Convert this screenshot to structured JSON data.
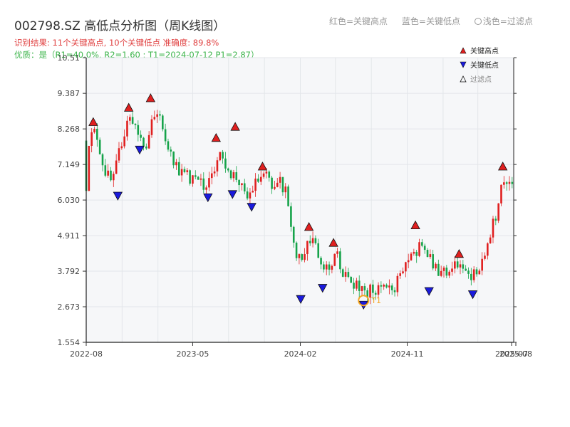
{
  "header": {
    "title": "002798.SZ 高低点分析图（周K线图）",
    "line1": "识别结果: 11个关键高点, 10个关键低点  准确度: 89.8%",
    "line2": "优质：是（R1=40.0%, R2=1.60 ; T1=2024-07-12 P1=2.87）"
  },
  "top_legend": {
    "red": "红色=关键高点",
    "blue": "蓝色=关键低点",
    "filtered": "浅色=过滤点"
  },
  "colors": {
    "up": "#e01f1f",
    "down": "#16a34a",
    "high_marker": "#e01f1f",
    "low_marker": "#1a1adc",
    "t1_ring": "#f5a623",
    "plot_bg": "#f6f7f9",
    "grid": "#e3e6ea"
  },
  "chart_data": {
    "type": "candlestick",
    "ylim": [
      1.554,
      10.51
    ],
    "yticks": [
      "1.554",
      "2.673",
      "3.792",
      "4.911",
      "6.030",
      "7.149",
      "8.268",
      "9.387",
      "10.51"
    ],
    "xlabels": [
      "2022-08",
      "2023-05",
      "2024-02",
      "2024-11",
      "2025-07",
      "2025-08"
    ],
    "x_range": [
      "2022-08-01",
      "2025-08-01"
    ],
    "legend": {
      "position": "top-right",
      "items": [
        {
          "label": "关键高点",
          "marker": "triangle-up",
          "color": "#e01f1f"
        },
        {
          "label": "关键低点",
          "marker": "triangle-down",
          "color": "#1a1adc"
        },
        {
          "label": "过滤点",
          "marker": "triangle-up-hollow",
          "color": "#666666"
        }
      ]
    },
    "t1_label": "T1",
    "t1_point": {
      "date": "2024-07-12",
      "price": 2.87
    },
    "anchors": [
      [
        "2022-08-05",
        7.9
      ],
      [
        "2022-08-26",
        8.2
      ],
      [
        "2022-09-16",
        7.0
      ],
      [
        "2022-10-07",
        6.5
      ],
      [
        "2022-10-28",
        7.7
      ],
      [
        "2022-11-18",
        8.7
      ],
      [
        "2022-12-09",
        8.3
      ],
      [
        "2022-12-30",
        7.8
      ],
      [
        "2023-01-27",
        8.9
      ],
      [
        "2023-02-17",
        8.0
      ],
      [
        "2023-03-10",
        7.4
      ],
      [
        "2023-03-31",
        6.9
      ],
      [
        "2023-04-21",
        6.75
      ],
      [
        "2023-05-12",
        6.6
      ],
      [
        "2023-06-02",
        6.45
      ],
      [
        "2023-06-23",
        6.9
      ],
      [
        "2023-07-14",
        7.5
      ],
      [
        "2023-08-04",
        6.9
      ],
      [
        "2023-08-25",
        6.7
      ],
      [
        "2023-09-15",
        6.0
      ],
      [
        "2023-10-06",
        6.5
      ],
      [
        "2023-10-27",
        6.8
      ],
      [
        "2023-11-17",
        6.5
      ],
      [
        "2023-12-08",
        6.6
      ],
      [
        "2023-12-29",
        6.2
      ],
      [
        "2024-01-19",
        4.2
      ],
      [
        "2024-02-09",
        4.3
      ],
      [
        "2024-03-01",
        4.9
      ],
      [
        "2024-03-22",
        4.3
      ],
      [
        "2024-04-12",
        3.8
      ],
      [
        "2024-05-03",
        4.35
      ],
      [
        "2024-05-24",
        3.7
      ],
      [
        "2024-06-14",
        3.4
      ],
      [
        "2024-07-12",
        3.05
      ],
      [
        "2024-08-02",
        3.3
      ],
      [
        "2024-08-30",
        3.15
      ],
      [
        "2024-09-27",
        3.3
      ],
      [
        "2024-10-18",
        3.9
      ],
      [
        "2024-11-08",
        4.2
      ],
      [
        "2024-12-06",
        4.6
      ],
      [
        "2024-12-27",
        4.3
      ],
      [
        "2025-01-17",
        3.7
      ],
      [
        "2025-02-07",
        3.85
      ],
      [
        "2025-03-07",
        3.95
      ],
      [
        "2025-04-11",
        3.5
      ],
      [
        "2025-05-02",
        3.9
      ],
      [
        "2025-05-23",
        4.6
      ],
      [
        "2025-06-13",
        5.5
      ],
      [
        "2025-07-04",
        6.8
      ],
      [
        "2025-07-25",
        6.6
      ],
      [
        "2025-08-01",
        6.5
      ]
    ],
    "key_highs": [
      {
        "date": "2022-08-19",
        "price": 8.35
      },
      {
        "date": "2022-11-18",
        "price": 8.8
      },
      {
        "date": "2023-01-13",
        "price": 9.1
      },
      {
        "date": "2023-06-30",
        "price": 7.85
      },
      {
        "date": "2023-08-18",
        "price": 8.2
      },
      {
        "date": "2023-10-27",
        "price": 6.95
      },
      {
        "date": "2024-02-23",
        "price": 5.05
      },
      {
        "date": "2024-04-26",
        "price": 4.55
      },
      {
        "date": "2024-11-22",
        "price": 5.1
      },
      {
        "date": "2025-03-14",
        "price": 4.2
      },
      {
        "date": "2025-07-04",
        "price": 6.95
      }
    ],
    "key_lows": [
      {
        "date": "2022-10-21",
        "price": 6.3
      },
      {
        "date": "2022-12-16",
        "price": 7.75
      },
      {
        "date": "2023-06-09",
        "price": 6.25
      },
      {
        "date": "2023-08-11",
        "price": 6.35
      },
      {
        "date": "2023-09-29",
        "price": 5.95
      },
      {
        "date": "2024-02-02",
        "price": 3.05
      },
      {
        "date": "2024-03-29",
        "price": 3.4
      },
      {
        "date": "2024-07-12",
        "price": 2.87
      },
      {
        "date": "2024-12-27",
        "price": 3.3
      },
      {
        "date": "2025-04-18",
        "price": 3.2
      }
    ]
  }
}
